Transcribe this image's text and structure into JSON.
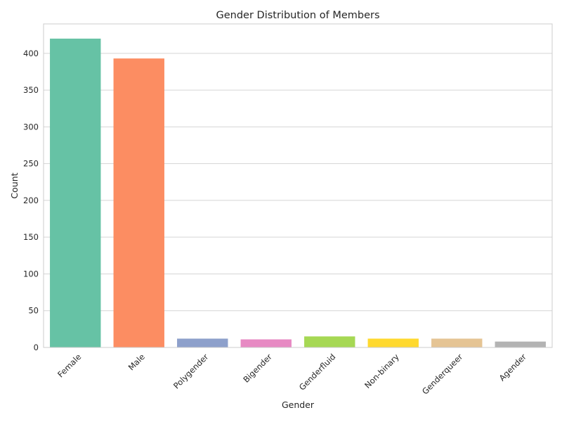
{
  "chart_data": {
    "type": "bar",
    "title": "Gender Distribution of Members",
    "xlabel": "Gender",
    "ylabel": "Count",
    "categories": [
      "Female",
      "Male",
      "Polygender",
      "Bigender",
      "Genderfluid",
      "Non-binary",
      "Genderqueer",
      "Agender"
    ],
    "values": [
      420,
      393,
      12,
      11,
      15,
      12,
      12,
      8
    ],
    "colors": [
      "#66c2a5",
      "#fc8d62",
      "#8da0cb",
      "#e78ac3",
      "#a6d854",
      "#ffd92f",
      "#e5c494",
      "#b3b3b3"
    ],
    "ylim": [
      0,
      440
    ],
    "yticks": [
      0,
      50,
      100,
      150,
      200,
      250,
      300,
      350,
      400
    ],
    "grid": true,
    "legend": "none"
  }
}
